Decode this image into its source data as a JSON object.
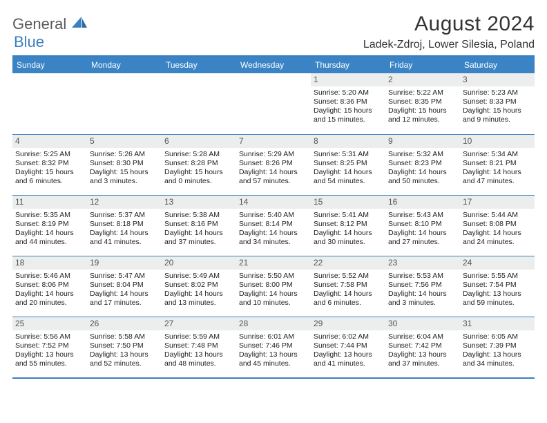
{
  "brand": {
    "part1": "General",
    "part2": "Blue"
  },
  "colors": {
    "accent": "#3a7fc0",
    "header_bg": "#3a84c6",
    "daybar": "#eceded"
  },
  "title": "August 2024",
  "location": "Ladek-Zdroj, Lower Silesia, Poland",
  "weekdays": [
    "Sunday",
    "Monday",
    "Tuesday",
    "Wednesday",
    "Thursday",
    "Friday",
    "Saturday"
  ],
  "grid": [
    [
      {
        "num": "",
        "lines": []
      },
      {
        "num": "",
        "lines": []
      },
      {
        "num": "",
        "lines": []
      },
      {
        "num": "",
        "lines": []
      },
      {
        "num": "1",
        "lines": [
          "Sunrise: 5:20 AM",
          "Sunset: 8:36 PM",
          "Daylight: 15 hours",
          "and 15 minutes."
        ]
      },
      {
        "num": "2",
        "lines": [
          "Sunrise: 5:22 AM",
          "Sunset: 8:35 PM",
          "Daylight: 15 hours",
          "and 12 minutes."
        ]
      },
      {
        "num": "3",
        "lines": [
          "Sunrise: 5:23 AM",
          "Sunset: 8:33 PM",
          "Daylight: 15 hours",
          "and 9 minutes."
        ]
      }
    ],
    [
      {
        "num": "4",
        "lines": [
          "Sunrise: 5:25 AM",
          "Sunset: 8:32 PM",
          "Daylight: 15 hours",
          "and 6 minutes."
        ]
      },
      {
        "num": "5",
        "lines": [
          "Sunrise: 5:26 AM",
          "Sunset: 8:30 PM",
          "Daylight: 15 hours",
          "and 3 minutes."
        ]
      },
      {
        "num": "6",
        "lines": [
          "Sunrise: 5:28 AM",
          "Sunset: 8:28 PM",
          "Daylight: 15 hours",
          "and 0 minutes."
        ]
      },
      {
        "num": "7",
        "lines": [
          "Sunrise: 5:29 AM",
          "Sunset: 8:26 PM",
          "Daylight: 14 hours",
          "and 57 minutes."
        ]
      },
      {
        "num": "8",
        "lines": [
          "Sunrise: 5:31 AM",
          "Sunset: 8:25 PM",
          "Daylight: 14 hours",
          "and 54 minutes."
        ]
      },
      {
        "num": "9",
        "lines": [
          "Sunrise: 5:32 AM",
          "Sunset: 8:23 PM",
          "Daylight: 14 hours",
          "and 50 minutes."
        ]
      },
      {
        "num": "10",
        "lines": [
          "Sunrise: 5:34 AM",
          "Sunset: 8:21 PM",
          "Daylight: 14 hours",
          "and 47 minutes."
        ]
      }
    ],
    [
      {
        "num": "11",
        "lines": [
          "Sunrise: 5:35 AM",
          "Sunset: 8:19 PM",
          "Daylight: 14 hours",
          "and 44 minutes."
        ]
      },
      {
        "num": "12",
        "lines": [
          "Sunrise: 5:37 AM",
          "Sunset: 8:18 PM",
          "Daylight: 14 hours",
          "and 41 minutes."
        ]
      },
      {
        "num": "13",
        "lines": [
          "Sunrise: 5:38 AM",
          "Sunset: 8:16 PM",
          "Daylight: 14 hours",
          "and 37 minutes."
        ]
      },
      {
        "num": "14",
        "lines": [
          "Sunrise: 5:40 AM",
          "Sunset: 8:14 PM",
          "Daylight: 14 hours",
          "and 34 minutes."
        ]
      },
      {
        "num": "15",
        "lines": [
          "Sunrise: 5:41 AM",
          "Sunset: 8:12 PM",
          "Daylight: 14 hours",
          "and 30 minutes."
        ]
      },
      {
        "num": "16",
        "lines": [
          "Sunrise: 5:43 AM",
          "Sunset: 8:10 PM",
          "Daylight: 14 hours",
          "and 27 minutes."
        ]
      },
      {
        "num": "17",
        "lines": [
          "Sunrise: 5:44 AM",
          "Sunset: 8:08 PM",
          "Daylight: 14 hours",
          "and 24 minutes."
        ]
      }
    ],
    [
      {
        "num": "18",
        "lines": [
          "Sunrise: 5:46 AM",
          "Sunset: 8:06 PM",
          "Daylight: 14 hours",
          "and 20 minutes."
        ]
      },
      {
        "num": "19",
        "lines": [
          "Sunrise: 5:47 AM",
          "Sunset: 8:04 PM",
          "Daylight: 14 hours",
          "and 17 minutes."
        ]
      },
      {
        "num": "20",
        "lines": [
          "Sunrise: 5:49 AM",
          "Sunset: 8:02 PM",
          "Daylight: 14 hours",
          "and 13 minutes."
        ]
      },
      {
        "num": "21",
        "lines": [
          "Sunrise: 5:50 AM",
          "Sunset: 8:00 PM",
          "Daylight: 14 hours",
          "and 10 minutes."
        ]
      },
      {
        "num": "22",
        "lines": [
          "Sunrise: 5:52 AM",
          "Sunset: 7:58 PM",
          "Daylight: 14 hours",
          "and 6 minutes."
        ]
      },
      {
        "num": "23",
        "lines": [
          "Sunrise: 5:53 AM",
          "Sunset: 7:56 PM",
          "Daylight: 14 hours",
          "and 3 minutes."
        ]
      },
      {
        "num": "24",
        "lines": [
          "Sunrise: 5:55 AM",
          "Sunset: 7:54 PM",
          "Daylight: 13 hours",
          "and 59 minutes."
        ]
      }
    ],
    [
      {
        "num": "25",
        "lines": [
          "Sunrise: 5:56 AM",
          "Sunset: 7:52 PM",
          "Daylight: 13 hours",
          "and 55 minutes."
        ]
      },
      {
        "num": "26",
        "lines": [
          "Sunrise: 5:58 AM",
          "Sunset: 7:50 PM",
          "Daylight: 13 hours",
          "and 52 minutes."
        ]
      },
      {
        "num": "27",
        "lines": [
          "Sunrise: 5:59 AM",
          "Sunset: 7:48 PM",
          "Daylight: 13 hours",
          "and 48 minutes."
        ]
      },
      {
        "num": "28",
        "lines": [
          "Sunrise: 6:01 AM",
          "Sunset: 7:46 PM",
          "Daylight: 13 hours",
          "and 45 minutes."
        ]
      },
      {
        "num": "29",
        "lines": [
          "Sunrise: 6:02 AM",
          "Sunset: 7:44 PM",
          "Daylight: 13 hours",
          "and 41 minutes."
        ]
      },
      {
        "num": "30",
        "lines": [
          "Sunrise: 6:04 AM",
          "Sunset: 7:42 PM",
          "Daylight: 13 hours",
          "and 37 minutes."
        ]
      },
      {
        "num": "31",
        "lines": [
          "Sunrise: 6:05 AM",
          "Sunset: 7:39 PM",
          "Daylight: 13 hours",
          "and 34 minutes."
        ]
      }
    ]
  ]
}
